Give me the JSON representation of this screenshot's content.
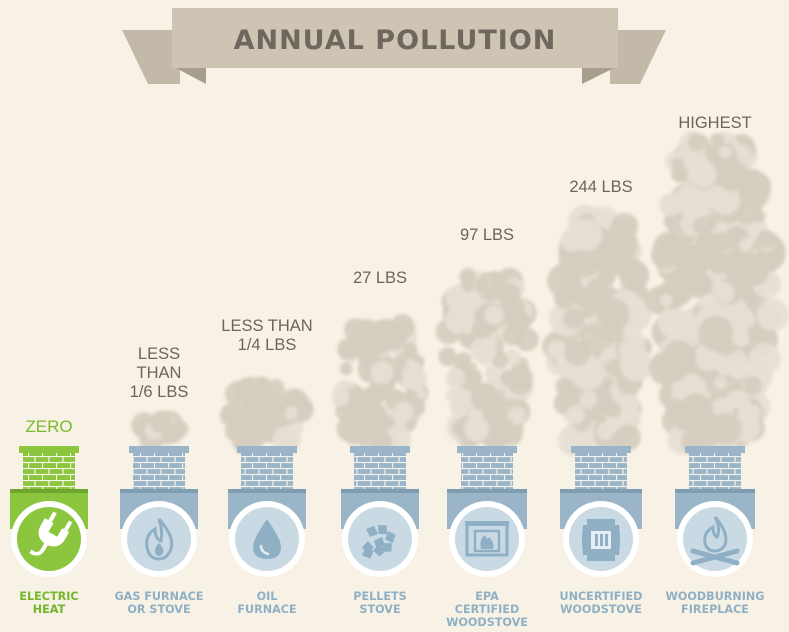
{
  "title": "ANNUAL POLLUTION",
  "colors": {
    "background": "#f8f2e6",
    "ribbon": "#cdc4b4",
    "ribbon_dark": "#a89e8d",
    "title_text": "#6f675d",
    "amount_text": "#6b655d",
    "electric_green": "#8cc63e",
    "electric_green_dark": "#6ea52c",
    "chimney_blue": "#9ab5c7",
    "chimney_blue_dark": "#7f9db0",
    "circle_fill": "#c9dae4",
    "label_blue": "#8fb0c4",
    "label_green": "#74b72a",
    "smoke": "#ddd6c9"
  },
  "sources": [
    {
      "id": "electric",
      "amount": [
        "ZERO"
      ],
      "label": [
        "ELECTRIC",
        "HEAT"
      ],
      "icon": "plug-icon",
      "smoke_level": 0,
      "highlight": true
    },
    {
      "id": "gas",
      "amount": [
        "LESS",
        "THAN",
        "1/6 LBS"
      ],
      "label": [
        "GAS FURNACE",
        "OR STOVE"
      ],
      "icon": "flame-icon",
      "smoke_level": 0.17,
      "highlight": false
    },
    {
      "id": "oil",
      "amount": [
        "LESS THAN",
        "1/4 LBS"
      ],
      "label": [
        "OIL",
        "FURNACE"
      ],
      "icon": "oil-drop-icon",
      "smoke_level": 0.25,
      "highlight": false
    },
    {
      "id": "pellets",
      "amount": [
        "27 LBS"
      ],
      "label": [
        "PELLETS",
        "STOVE"
      ],
      "icon": "pellets-icon",
      "smoke_level": 27,
      "highlight": false
    },
    {
      "id": "epa",
      "amount": [
        "97 LBS"
      ],
      "label": [
        "EPA",
        "CERTIFIED",
        "WOODSTOVE"
      ],
      "icon": "fireplace-insert-icon",
      "smoke_level": 97,
      "highlight": false
    },
    {
      "id": "uncertified",
      "amount": [
        "244 LBS"
      ],
      "label": [
        "UNCERTIFIED",
        "WOODSTOVE"
      ],
      "icon": "woodstove-icon",
      "smoke_level": 244,
      "highlight": false
    },
    {
      "id": "woodburning",
      "amount": [
        "HIGHEST"
      ],
      "label": [
        "WOODBURNING",
        "FIREPLACE"
      ],
      "icon": "campfire-icon",
      "smoke_level": 400,
      "highlight": false
    }
  ]
}
